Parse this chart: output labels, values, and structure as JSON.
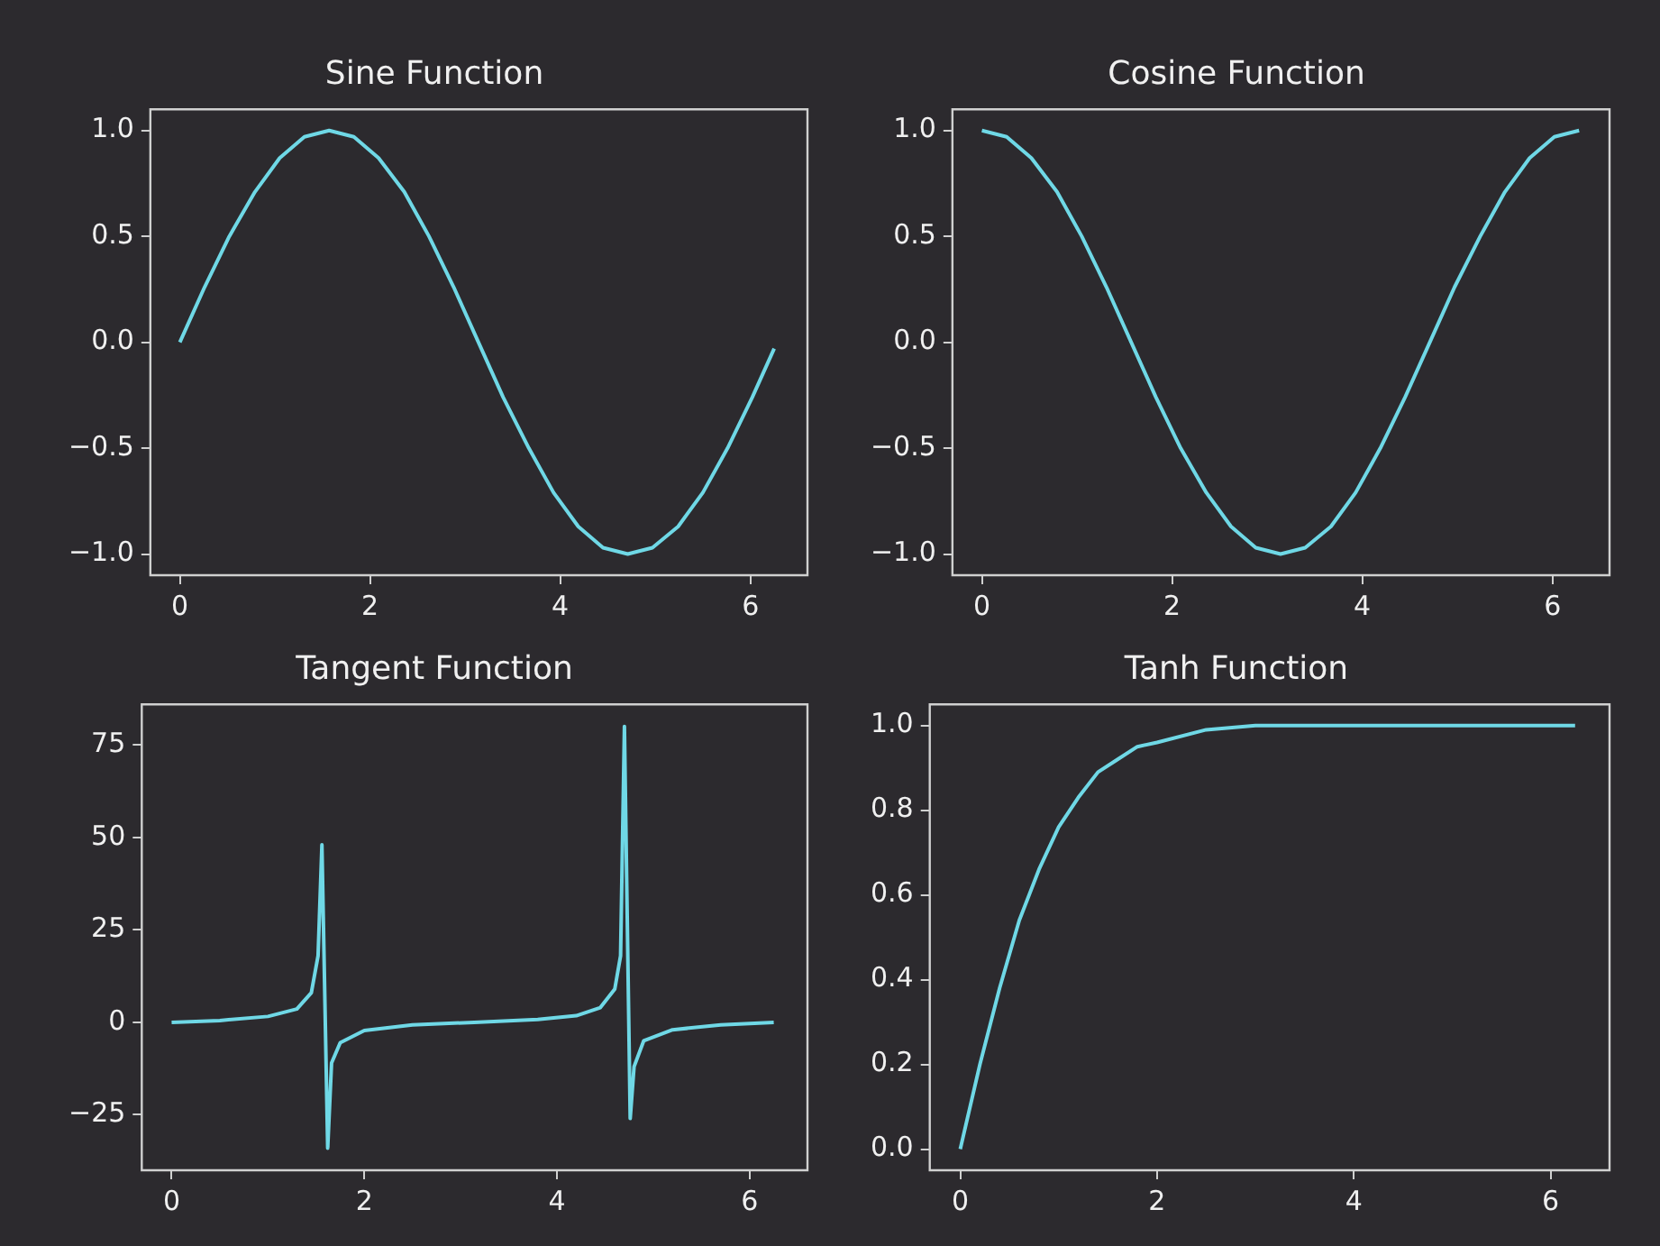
{
  "chart_data": [
    {
      "type": "line",
      "title": "Sine Function",
      "x": [
        0,
        0.26,
        0.52,
        0.79,
        1.05,
        1.31,
        1.57,
        1.83,
        2.09,
        2.36,
        2.62,
        2.88,
        3.14,
        3.4,
        3.67,
        3.93,
        4.19,
        4.45,
        4.71,
        4.97,
        5.24,
        5.5,
        5.76,
        6.02,
        6.25
      ],
      "values": [
        0,
        0.26,
        0.5,
        0.71,
        0.87,
        0.97,
        1,
        0.97,
        0.87,
        0.71,
        0.5,
        0.26,
        0,
        -0.26,
        -0.5,
        -0.71,
        -0.87,
        -0.97,
        -1,
        -0.97,
        -0.87,
        -0.71,
        -0.5,
        -0.26,
        -0.03
      ],
      "color": "#6fd8e6",
      "xlim": [
        -0.31,
        6.6
      ],
      "ylim": [
        -1.1,
        1.1
      ],
      "xticks": [
        0,
        2,
        4,
        6
      ],
      "yticks": [
        {
          "value": -1,
          "label": "−1.0"
        },
        {
          "value": -0.5,
          "label": "−0.5"
        },
        {
          "value": 0,
          "label": "0.0"
        },
        {
          "value": 0.5,
          "label": "0.5"
        },
        {
          "value": 1,
          "label": "1.0"
        }
      ]
    },
    {
      "type": "line",
      "title": "Cosine Function",
      "x": [
        0,
        0.26,
        0.52,
        0.79,
        1.05,
        1.31,
        1.57,
        1.83,
        2.09,
        2.36,
        2.62,
        2.88,
        3.14,
        3.4,
        3.67,
        3.93,
        4.19,
        4.45,
        4.71,
        4.97,
        5.24,
        5.5,
        5.76,
        6.02,
        6.28
      ],
      "values": [
        1,
        0.97,
        0.87,
        0.71,
        0.5,
        0.26,
        0,
        -0.26,
        -0.5,
        -0.71,
        -0.87,
        -0.97,
        -1,
        -0.97,
        -0.87,
        -0.71,
        -0.5,
        -0.26,
        0,
        0.26,
        0.5,
        0.71,
        0.87,
        0.97,
        1
      ],
      "color": "#6fd8e6",
      "xlim": [
        -0.31,
        6.6
      ],
      "ylim": [
        -1.1,
        1.1
      ],
      "xticks": [
        0,
        2,
        4,
        6
      ],
      "yticks": [
        {
          "value": -1,
          "label": "−1.0"
        },
        {
          "value": -0.5,
          "label": "−0.5"
        },
        {
          "value": 0,
          "label": "0.0"
        },
        {
          "value": 0.5,
          "label": "0.5"
        },
        {
          "value": 1,
          "label": "1.0"
        }
      ]
    },
    {
      "type": "line",
      "title": "Tangent Function",
      "x": [
        0,
        0.5,
        1,
        1.3,
        1.45,
        1.52,
        1.56,
        1.62,
        1.66,
        1.75,
        2,
        2.5,
        3.14,
        3.8,
        4.2,
        4.45,
        4.6,
        4.66,
        4.7,
        4.76,
        4.8,
        4.9,
        5.2,
        5.7,
        6.25
      ],
      "values": [
        0,
        0.5,
        1.6,
        3.6,
        8,
        18,
        48,
        -34,
        -11,
        -5.5,
        -2.2,
        -0.7,
        0,
        0.8,
        1.8,
        4,
        9,
        18,
        80,
        -26,
        -12,
        -5,
        -2,
        -0.7,
        0
      ],
      "color": "#6fd8e6",
      "xlim": [
        -0.31,
        6.6
      ],
      "ylim": [
        -40,
        86
      ],
      "xticks": [
        0,
        2,
        4,
        6
      ],
      "yticks": [
        -25,
        0,
        25,
        50,
        75
      ]
    },
    {
      "type": "line",
      "title": "Tanh Function",
      "x": [
        0,
        0.2,
        0.4,
        0.6,
        0.8,
        1,
        1.2,
        1.4,
        1.6,
        1.8,
        2,
        2.5,
        3,
        3.5,
        4,
        5,
        6.25
      ],
      "values": [
        0,
        0.2,
        0.38,
        0.54,
        0.66,
        0.76,
        0.83,
        0.89,
        0.92,
        0.95,
        0.96,
        0.99,
        1,
        1,
        1,
        1,
        1
      ],
      "color": "#6fd8e6",
      "xlim": [
        -0.31,
        6.6
      ],
      "ylim": [
        -0.05,
        1.05
      ],
      "xticks": [
        0,
        2,
        4,
        6
      ],
      "yticks": [
        {
          "value": 0,
          "label": "0.0"
        },
        0.2,
        0.4,
        0.6,
        0.8,
        {
          "value": 1,
          "label": "1.0"
        }
      ]
    }
  ]
}
